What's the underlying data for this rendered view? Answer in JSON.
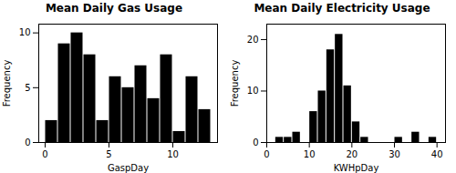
{
  "chart_data": [
    {
      "type": "histogram",
      "title": "Mean Daily Gas Usage",
      "xlabel": "GaspDay",
      "ylabel": "Frequency",
      "bins": [
        0,
        1,
        2,
        3,
        4,
        5,
        6,
        7,
        8,
        9,
        10,
        11,
        12,
        13
      ],
      "values": [
        2,
        9,
        10,
        8,
        2,
        6,
        5,
        7,
        4,
        8,
        1,
        6,
        3
      ],
      "xlim": [
        -0.5,
        13.5
      ],
      "ylim": [
        0,
        10.8
      ],
      "xticks": [
        0,
        5,
        10
      ],
      "yticks": [
        0,
        5,
        10
      ]
    },
    {
      "type": "histogram",
      "title": "Mean Daily Electricity Usage",
      "xlabel": "KWHpDay",
      "ylabel": "Frequency",
      "bins": [
        2,
        4,
        6,
        8,
        10,
        12,
        14,
        16,
        18,
        20,
        22,
        24,
        26,
        28,
        30,
        32,
        34,
        36,
        38,
        40
      ],
      "values": [
        1,
        1,
        2,
        0,
        6,
        10,
        18,
        21,
        11,
        4,
        1,
        0,
        0,
        0,
        1,
        0,
        2,
        0,
        1
      ],
      "xlim": [
        0,
        42
      ],
      "ylim": [
        0,
        23
      ],
      "xticks": [
        0,
        10,
        20,
        30,
        40
      ],
      "yticks": [
        0,
        10,
        20
      ]
    }
  ]
}
